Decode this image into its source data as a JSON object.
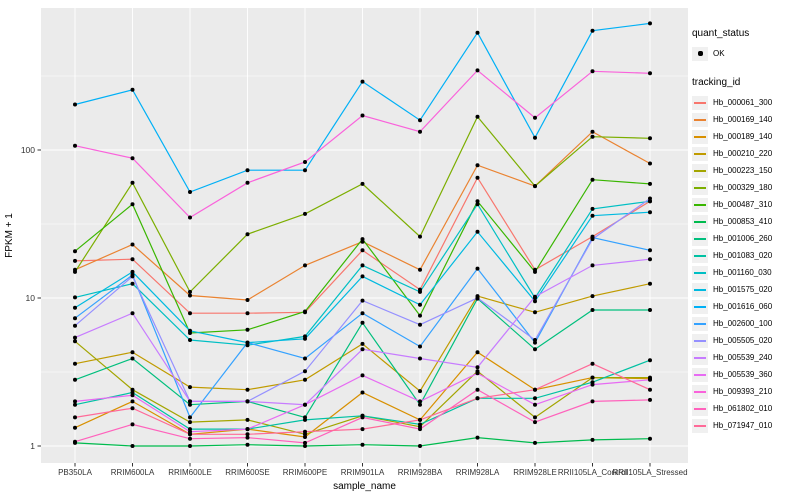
{
  "figure": {
    "y_axis": {
      "label": "FPKM + 1",
      "tick_labels": [
        "1",
        "10",
        "100"
      ],
      "tick_values": [
        1,
        10,
        100
      ],
      "scale": "log10"
    },
    "x_axis": {
      "label": "sample_name"
    },
    "colors": {
      "panel_bg": "#EBEBEB",
      "grid": "#FFFFFF",
      "point": "#000000",
      "tick_text": "#333333",
      "title_text": "#000000"
    }
  },
  "legend": {
    "quant_status_title": "quant_status",
    "quant_status_items": [
      {
        "label": "OK"
      }
    ],
    "tracking_title": "tracking_id"
  },
  "chart_data": {
    "type": "line",
    "title": "",
    "xlabel": "sample_name",
    "ylabel": "FPKM + 1",
    "y_scale": "log10",
    "y_ticks": [
      1,
      10,
      100
    ],
    "ylim_log10": [
      -0.12,
      2.96
    ],
    "grid": true,
    "legend_position": "right",
    "point_marker": "black dot (quant_status OK)",
    "categories": [
      "PB350LA",
      "RRIM600LA",
      "RRIM600LE",
      "RRIM600SE",
      "RRIM600PE",
      "RRIM901LA",
      "RRIM928BA",
      "RRIM928LA",
      "RRIM928LE",
      "RRII105LA_Control",
      "RRII105LA_Stressed"
    ],
    "series": [
      {
        "name": "Hb_000061_300",
        "color": "#F8766D",
        "values": [
          17.8,
          18.3,
          7.9,
          7.9,
          8.0,
          21,
          11.4,
          65,
          15.5,
          26,
          45
        ]
      },
      {
        "name": "Hb_000169_140",
        "color": "#EA8331",
        "values": [
          15.5,
          23,
          10.4,
          9.7,
          16.6,
          24,
          15.5,
          79,
          57,
          133,
          81
        ]
      },
      {
        "name": "Hb_000189_140",
        "color": "#D89000",
        "values": [
          1.33,
          2.0,
          1.2,
          1.3,
          1.15,
          2.3,
          1.5,
          4.3,
          2.4,
          2.9,
          2.85
        ]
      },
      {
        "name": "Hb_000210_220",
        "color": "#C09B00",
        "values": [
          3.6,
          4.3,
          2.5,
          2.4,
          2.8,
          4.9,
          2.35,
          10.3,
          8.0,
          10.3,
          12.5
        ]
      },
      {
        "name": "Hb_000223_150",
        "color": "#A3A500",
        "values": [
          5.1,
          2.4,
          1.45,
          1.5,
          1.2,
          1.6,
          1.35,
          3.2,
          1.56,
          2.9,
          2.9
        ]
      },
      {
        "name": "Hb_000329_180",
        "color": "#7CAE00",
        "values": [
          15.0,
          60,
          11,
          27,
          37,
          59,
          26,
          168,
          57,
          123,
          120
        ]
      },
      {
        "name": "Hb_000487_310",
        "color": "#39B600",
        "values": [
          20.7,
          43,
          5.8,
          6.1,
          8.1,
          25,
          7.6,
          45,
          15,
          63,
          59
        ]
      },
      {
        "name": "Hb_000853_410",
        "color": "#00BB4E",
        "values": [
          1.05,
          1.0,
          1.0,
          1.02,
          1.0,
          1.02,
          1.0,
          1.14,
          1.05,
          1.1,
          1.12
        ]
      },
      {
        "name": "Hb_001006_260",
        "color": "#00BF7D",
        "values": [
          2.8,
          3.9,
          1.9,
          2.0,
          1.56,
          6.8,
          1.9,
          9.9,
          4.5,
          8.3,
          8.3
        ]
      },
      {
        "name": "Hb_001083_020",
        "color": "#00C1A3",
        "values": [
          1.9,
          2.3,
          1.3,
          1.3,
          1.5,
          1.6,
          1.4,
          2.1,
          2.1,
          2.7,
          3.8
        ]
      },
      {
        "name": "Hb_001160_030",
        "color": "#00BFC4",
        "values": [
          10.1,
          12.5,
          5.2,
          4.8,
          5.5,
          16.6,
          11,
          43,
          10,
          40,
          45
        ]
      },
      {
        "name": "Hb_001575_020",
        "color": "#00BAE0",
        "values": [
          8.6,
          15,
          6.0,
          5.0,
          5.3,
          14,
          9.0,
          28,
          9.5,
          36,
          38
        ]
      },
      {
        "name": "Hb_001616_060",
        "color": "#00B0F6",
        "values": [
          203,
          255,
          52,
          73,
          73,
          290,
          159,
          620,
          121,
          640,
          717
        ]
      },
      {
        "name": "Hb_002600_100",
        "color": "#35A2FF",
        "values": [
          7.3,
          14.3,
          1.56,
          5.0,
          3.9,
          7.9,
          4.7,
          15.8,
          5.0,
          25.6,
          21
        ]
      },
      {
        "name": "Hb_005505_020",
        "color": "#9590FF",
        "values": [
          6.5,
          14,
          2.0,
          2.0,
          3.2,
          9.6,
          6.6,
          10,
          5.2,
          25,
          47
        ]
      },
      {
        "name": "Hb_005539_240",
        "color": "#C77CFF",
        "values": [
          5.4,
          7.9,
          2.0,
          2.0,
          1.9,
          4.5,
          3.9,
          3.4,
          10.2,
          16.6,
          18.3
        ]
      },
      {
        "name": "Hb_005539_360",
        "color": "#E76BF3",
        "values": [
          2.0,
          2.2,
          1.25,
          1.3,
          1.9,
          3.0,
          2.0,
          3.1,
          1.9,
          2.6,
          2.8
        ]
      },
      {
        "name": "Hb_009393_210",
        "color": "#FA62DB",
        "values": [
          107,
          88,
          35,
          60,
          83,
          171,
          133,
          345,
          165,
          340,
          330
        ]
      },
      {
        "name": "Hb_061802_010",
        "color": "#FF62BC",
        "values": [
          1.07,
          1.4,
          1.12,
          1.14,
          1.05,
          1.56,
          1.3,
          2.4,
          1.45,
          2.0,
          2.05
        ]
      },
      {
        "name": "Hb_071947_010",
        "color": "#FF6A98",
        "values": [
          1.56,
          1.8,
          1.2,
          1.2,
          1.25,
          1.3,
          1.5,
          2.1,
          2.4,
          3.6,
          2.4
        ]
      }
    ]
  }
}
